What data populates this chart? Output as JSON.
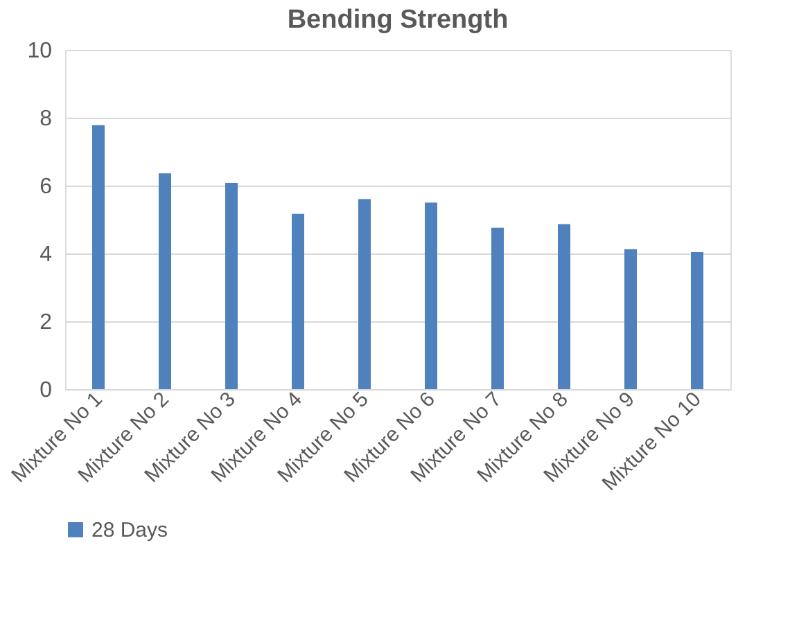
{
  "chart_data": {
    "type": "bar",
    "title": "Bending Strength",
    "categories": [
      "Mixture No 1",
      "Mixture No 2",
      "Mixture No 3",
      "Mixture No 4",
      "Mixture No 5",
      "Mixture No 6",
      "Mixture No 7",
      "Mixture No 8",
      "Mixture No 9",
      "Mixture No 10"
    ],
    "series": [
      {
        "name": "28 Days",
        "color": "#4f81bd",
        "values": [
          7.78,
          6.36,
          6.08,
          5.17,
          5.6,
          5.5,
          4.76,
          4.86,
          4.12,
          4.04
        ]
      }
    ],
    "ylim": [
      0,
      10
    ],
    "yticks": [
      0,
      2,
      4,
      6,
      8,
      10
    ],
    "grid": "y",
    "legend": "bottom"
  }
}
